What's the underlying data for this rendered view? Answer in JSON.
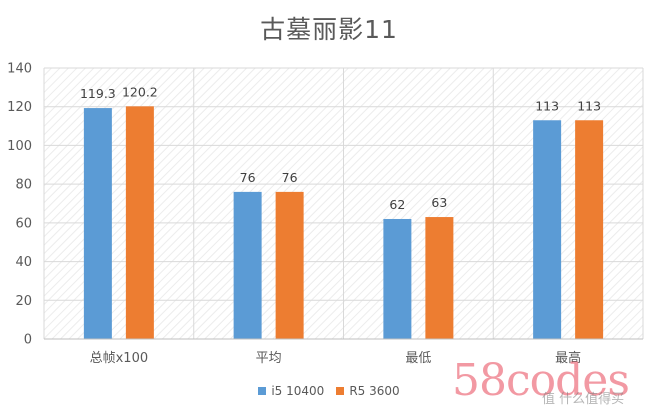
{
  "chart_data": {
    "type": "bar",
    "title": "古墓丽影11",
    "categories": [
      "总帧x100",
      "平均",
      "最低",
      "最高"
    ],
    "series": [
      {
        "name": "i5 10400",
        "color": "#5b9bd5",
        "values": [
          119.3,
          76,
          62,
          113
        ],
        "labels": [
          "119.3",
          "76",
          "62",
          "113"
        ]
      },
      {
        "name": "R5 3600",
        "color": "#ed7d31",
        "values": [
          120.2,
          76,
          63,
          113
        ],
        "labels": [
          "120.2",
          "76",
          "63",
          "113"
        ]
      }
    ],
    "ylim": [
      0,
      140
    ],
    "yticks": [
      0,
      20,
      40,
      60,
      80,
      100,
      120,
      140
    ],
    "grid": true,
    "legend": "bottom"
  },
  "watermark": {
    "text": "58codes",
    "sub": "值 什么值得买"
  }
}
